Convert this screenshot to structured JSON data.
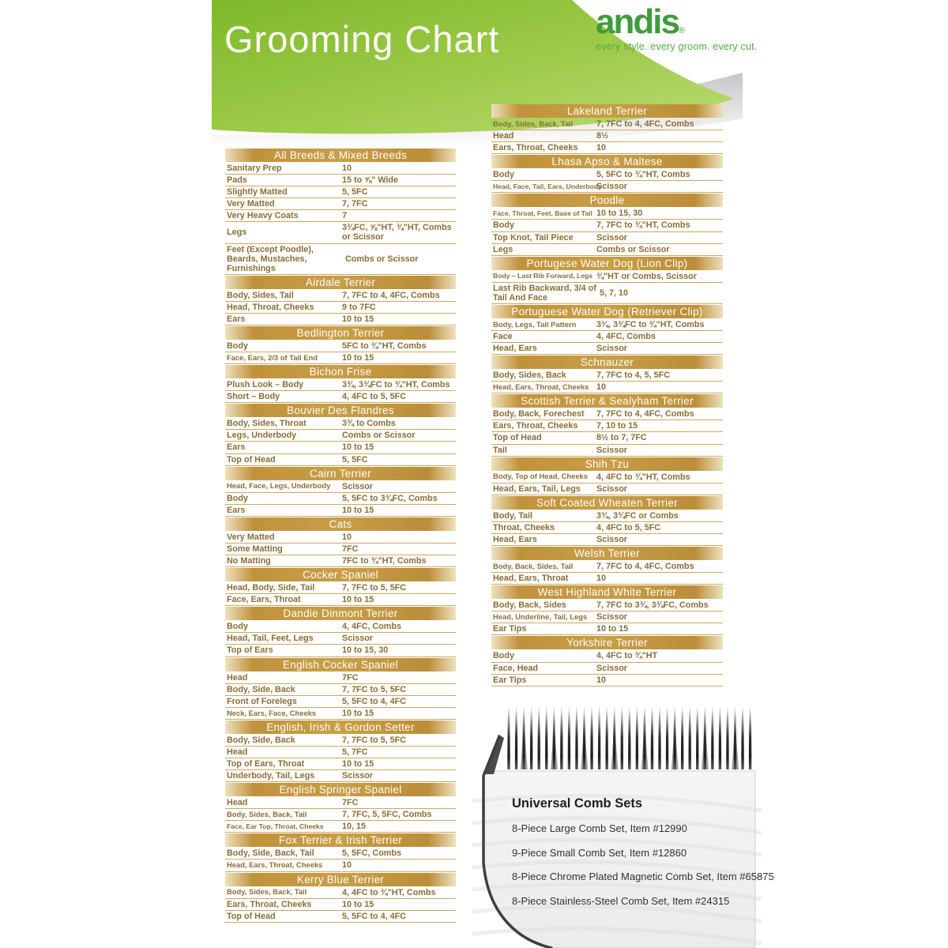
{
  "header": {
    "title": "Grooming Chart",
    "brand": "andis",
    "brand_reg": "®",
    "tagline": "every style. every groom. every cut."
  },
  "colors": {
    "banner_green_dark": "#83bb2f",
    "banner_green_light": "#b7d76e",
    "gold_bar": "#c49743",
    "row_text_gold": "#8a6d35",
    "brand_green": "#3f9c3a"
  },
  "columns": [
    {
      "tables": [
        {
          "name": "All Breeds & Mixed Breeds",
          "rows": [
            {
              "label": "Sanitary Prep",
              "value": "10"
            },
            {
              "label": "Pads",
              "value": "15 to ⅝\" Wide"
            },
            {
              "label": "Slightly Matted",
              "value": "5, 5FC"
            },
            {
              "label": "Very Matted",
              "value": "7, 7FC"
            },
            {
              "label": "Very Heavy Coats",
              "value": "7"
            },
            {
              "label": "Legs",
              "value": "3¾FC, ⅝\"HT, ¾\"HT, Combs or Scissor"
            },
            {
              "label": "Feet (Except Poodle), Beards, Mustaches, Furnishings",
              "value": "Combs or Scissor"
            }
          ]
        },
        {
          "name": "Airdale Terrier",
          "rows": [
            {
              "label": "Body, Sides, Tail",
              "value": "7, 7FC to 4, 4FC, Combs"
            },
            {
              "label": "Head, Throat, Cheeks",
              "value": "9 to 7FC"
            },
            {
              "label": "Ears",
              "value": "10 to 15"
            }
          ]
        },
        {
          "name": "Bedlington Terrier",
          "rows": [
            {
              "label": "Body",
              "value": "5FC to ¾\"HT, Combs"
            },
            {
              "label": "Face, Ears, 2/3 of Tail End",
              "value": "10 to 15"
            }
          ]
        },
        {
          "name": "Bichon Frise",
          "rows": [
            {
              "label": "Plush Look – Body",
              "value": "3¾, 3¾FC to ¾\"HT, Combs"
            },
            {
              "label": "Short – Body",
              "value": "4, 4FC to 5, 5FC"
            }
          ]
        },
        {
          "name": "Bouvier Des Flandres",
          "rows": [
            {
              "label": "Body, Sides, Throat",
              "value": "3¾ to Combs"
            },
            {
              "label": "Legs, Underbody",
              "value": "Combs or Scissor"
            },
            {
              "label": "Ears",
              "value": "10 to 15"
            },
            {
              "label": "Top of Head",
              "value": "5, 5FC"
            }
          ]
        },
        {
          "name": "Cairn Terrier",
          "rows": [
            {
              "label": "Head, Face, Legs, Underbody",
              "value": "Scissor"
            },
            {
              "label": "Body",
              "value": "5, 5FC to 3¾FC, Combs"
            },
            {
              "label": "Ears",
              "value": "10 to 15"
            }
          ]
        },
        {
          "name": "Cats",
          "rows": [
            {
              "label": "Very Matted",
              "value": "10"
            },
            {
              "label": "Some Matting",
              "value": "7FC"
            },
            {
              "label": "No Matting",
              "value": "7FC to ¾\"HT, Combs"
            }
          ]
        },
        {
          "name": "Cocker Spaniel",
          "rows": [
            {
              "label": "Head, Body, Side, Tail",
              "value": "7, 7FC to 5, 5FC"
            },
            {
              "label": "Face, Ears, Throat",
              "value": "10 to 15"
            }
          ]
        },
        {
          "name": "Dandie Dinmont Terrier",
          "rows": [
            {
              "label": "Body",
              "value": "4, 4FC, Combs"
            },
            {
              "label": "Head, Tail, Feet, Legs",
              "value": "Scissor"
            },
            {
              "label": "Top of Ears",
              "value": "10 to 15, 30"
            }
          ]
        },
        {
          "name": "English Cocker Spaniel",
          "rows": [
            {
              "label": "Head",
              "value": "7FC"
            },
            {
              "label": "Body, Side, Back",
              "value": "7, 7FC to 5, 5FC"
            },
            {
              "label": "Front of Forelegs",
              "value": "5, 5FC to 4, 4FC"
            },
            {
              "label": "Neck, Ears, Face, Cheeks",
              "value": "10 to 15"
            }
          ]
        },
        {
          "name": "English, Irish & Gordon Setter",
          "rows": [
            {
              "label": "Body, Side, Back",
              "value": "7, 7FC to 5, 5FC"
            },
            {
              "label": "Head",
              "value": "5, 7FC"
            },
            {
              "label": "Top of Ears, Throat",
              "value": "10 to 15"
            },
            {
              "label": "Underbody, Tail, Legs",
              "value": "Scissor"
            }
          ]
        },
        {
          "name": "English Springer Spaniel",
          "rows": [
            {
              "label": "Head",
              "value": "7FC"
            },
            {
              "label": "Body, Sides, Back, Tail",
              "value": "7, 7FC, 5, 5FC, Combs"
            },
            {
              "label": "Face, Ear Top, Throat, Cheeks",
              "value": "10, 15"
            }
          ]
        },
        {
          "name": "Fox Terrier & Irish Terrier",
          "rows": [
            {
              "label": "Body, Side, Back, Tail",
              "value": "5, 5FC, Combs"
            },
            {
              "label": "Head, Ears, Throat, Cheeks",
              "value": "10"
            }
          ]
        },
        {
          "name": "Kerry Blue Terrier",
          "rows": [
            {
              "label": "Body, Sides, Back, Tail",
              "value": "4, 4FC to ¾\"HT, Combs"
            },
            {
              "label": "Ears, Throat, Cheeks",
              "value": "10 to 15"
            },
            {
              "label": "Top of Head",
              "value": "5, 5FC to 4, 4FC"
            }
          ]
        }
      ]
    },
    {
      "tables": [
        {
          "name": "Lakeland Terrier",
          "rows": [
            {
              "label": "Body, Sides, Back, Tail",
              "value": "7, 7FC to 4, 4FC, Combs"
            },
            {
              "label": "Head",
              "value": "8½"
            },
            {
              "label": "Ears, Throat, Cheeks",
              "value": "10"
            }
          ]
        },
        {
          "name": "Lhasa Apso & Maltese",
          "rows": [
            {
              "label": "Body",
              "value": "5, 5FC to ¾\"HT, Combs"
            },
            {
              "label": "Head, Face, Tail, Ears, Underbody",
              "value": "Scissor"
            }
          ]
        },
        {
          "name": "Poodle",
          "rows": [
            {
              "label": "Face, Throat, Feet, Base of Tail",
              "value": "10 to 15, 30"
            },
            {
              "label": "Body",
              "value": "7, 7FC to ¾\"HT, Combs"
            },
            {
              "label": "Top Knot, Tail Piece",
              "value": "Scissor"
            },
            {
              "label": "Legs",
              "value": "Combs or Scissor"
            }
          ]
        },
        {
          "name": "Portugese Water Dog (Lion Clip)",
          "rows": [
            {
              "label": "Body – Last Rib Forward, Legs",
              "value": "¾\"HT or Combs, Scissor"
            },
            {
              "label": "Last Rib Backward, 3/4 of Tail And Face",
              "value": "5, 7, 10"
            }
          ]
        },
        {
          "name": "Portuguese Water Dog (Retriever Clip)",
          "rows": [
            {
              "label": "Body, Legs, Tail Pattern",
              "value": "3¾, 3¾FC to ¾\"HT, Combs"
            },
            {
              "label": "Face",
              "value": "4, 4FC, Combs"
            },
            {
              "label": "Head, Ears",
              "value": "Scissor"
            }
          ]
        },
        {
          "name": "Schnauzer",
          "rows": [
            {
              "label": "Body, Sides, Back",
              "value": "7, 7FC to 4, 5, 5FC"
            },
            {
              "label": "Head, Ears, Throat, Cheeks",
              "value": "10"
            }
          ]
        },
        {
          "name": "Scottish Terrier & Sealyham Terrier",
          "rows": [
            {
              "label": "Body, Back, Forechest",
              "value": "7, 7FC to 4, 4FC, Combs"
            },
            {
              "label": "Ears, Throat, Cheeks",
              "value": "7, 10 to 15"
            },
            {
              "label": "Top of Head",
              "value": "8½ to 7, 7FC"
            },
            {
              "label": "Tail",
              "value": "Scissor"
            }
          ]
        },
        {
          "name": "Shih Tzu",
          "rows": [
            {
              "label": "Body, Top of Head, Cheeks",
              "value": "4, 4FC to ¾\"HT, Combs"
            },
            {
              "label": "Head, Ears, Tail, Legs",
              "value": "Scissor"
            }
          ]
        },
        {
          "name": "Soft Coated Wheaten Terrier",
          "rows": [
            {
              "label": "Body, Tail",
              "value": "3¾, 3¾FC or Combs"
            },
            {
              "label": "Throat, Cheeks",
              "value": "4, 4FC to 5, 5FC"
            },
            {
              "label": "Head, Ears",
              "value": "Scissor"
            }
          ]
        },
        {
          "name": "Welsh Terrier",
          "rows": [
            {
              "label": "Body, Back, Sides, Tail",
              "value": "7, 7FC to 4, 4FC, Combs"
            },
            {
              "label": "Head, Ears, Throat",
              "value": "10"
            }
          ]
        },
        {
          "name": "West Highland White Terrier",
          "rows": [
            {
              "label": "Body, Back, Sides",
              "value": "7, 7FC to 3¾, 3¾FC, Combs"
            },
            {
              "label": "Head, Underline, Tail, Legs",
              "value": "Scissor"
            },
            {
              "label": "Ear Tips",
              "value": "10 to 15"
            }
          ]
        },
        {
          "name": "Yorkshire Terrier",
          "rows": [
            {
              "label": "Body",
              "value": "4, 4FC to ¾\"HT"
            },
            {
              "label": "Face, Head",
              "value": "Scissor"
            },
            {
              "label": "Ear Tips",
              "value": "10"
            }
          ]
        }
      ]
    }
  ],
  "comb_sets": {
    "title": "Universal Comb Sets",
    "items": [
      "8-Piece Large Comb Set, Item #12990",
      "9-Piece Small Comb Set, Item #12860",
      "8-Piece Chrome Plated Magnetic Comb Set, Item #65875",
      "8-Piece Stainless-Steel Comb Set, Item #24315"
    ]
  }
}
